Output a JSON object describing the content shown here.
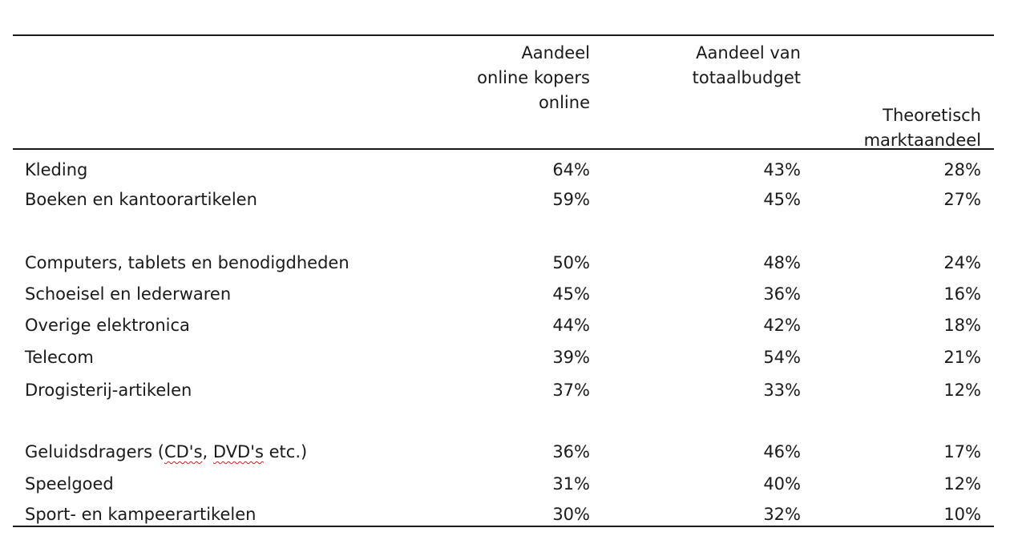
{
  "table": {
    "headers": {
      "col1": [
        "Aandeel",
        "online kopers",
        "online"
      ],
      "col2": [
        "Aandeel van",
        "totaalbudget"
      ],
      "col3": [
        "Theoretisch",
        "marktaandeel"
      ]
    },
    "rows": [
      {
        "label": "Kleding",
        "c1": "64%",
        "c2": "43%",
        "c3": "28%"
      },
      {
        "label": "Boeken en kantoorartikelen",
        "c1": "59%",
        "c2": "45%",
        "c3": "27%"
      },
      {
        "label": "Computers, tablets en benodigdheden",
        "c1": "50%",
        "c2": "48%",
        "c3": "24%"
      },
      {
        "label": "Schoeisel en lederwaren",
        "c1": "45%",
        "c2": "36%",
        "c3": "16%"
      },
      {
        "label": "Overige elektronica",
        "c1": "44%",
        "c2": "42%",
        "c3": "18%"
      },
      {
        "label": "Telecom",
        "c1": "39%",
        "c2": "54%",
        "c3": "21%"
      },
      {
        "label": "Drogisterij-artikelen",
        "c1": "37%",
        "c2": "33%",
        "c3": "12%"
      },
      {
        "label_parts": [
          "Geluidsdragers (",
          "CD's",
          ", ",
          "DVD's",
          " etc.)"
        ],
        "c1": "36%",
        "c2": "46%",
        "c3": "17%"
      },
      {
        "label": "Speelgoed",
        "c1": "31%",
        "c2": "40%",
        "c3": "12%"
      },
      {
        "label": "Sport- en kampeerartikelen",
        "c1": "30%",
        "c2": "32%",
        "c3": "10%"
      }
    ]
  }
}
